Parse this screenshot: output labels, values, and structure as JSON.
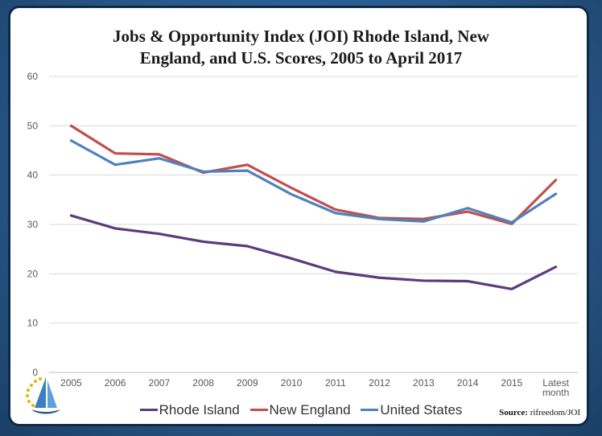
{
  "chart_data": {
    "type": "line",
    "title_line1": "Jobs & Opportunity Index (JOI) Rhode Island, New",
    "title_line2": "England, and U.S. Scores, 2005 to April 2017",
    "categories": [
      "2005",
      "2006",
      "2007",
      "2008",
      "2009",
      "2010",
      "2011",
      "2012",
      "2013",
      "2014",
      "2015",
      "Latest month"
    ],
    "ylim": [
      0,
      60
    ],
    "yticks": [
      0,
      10,
      20,
      30,
      40,
      50,
      60
    ],
    "grid": true,
    "legend_position": "bottom",
    "series": [
      {
        "name": "Rhode Island",
        "color": "#5b3a7e",
        "values": [
          31.8,
          29.2,
          28.1,
          26.5,
          25.6,
          23.1,
          20.4,
          19.2,
          18.6,
          18.5,
          16.9,
          21.4
        ]
      },
      {
        "name": "New England",
        "color": "#c0504d",
        "values": [
          50.0,
          44.4,
          44.2,
          40.5,
          42.1,
          37.4,
          33.0,
          31.3,
          31.1,
          32.6,
          30.1,
          39.0
        ]
      },
      {
        "name": "United States",
        "color": "#4f81bd",
        "values": [
          47.0,
          42.1,
          43.4,
          40.7,
          40.9,
          36.1,
          32.3,
          31.1,
          30.6,
          33.3,
          30.4,
          36.2
        ]
      }
    ]
  },
  "source_label": "Source:",
  "source_text": "rifreedom/JOI"
}
